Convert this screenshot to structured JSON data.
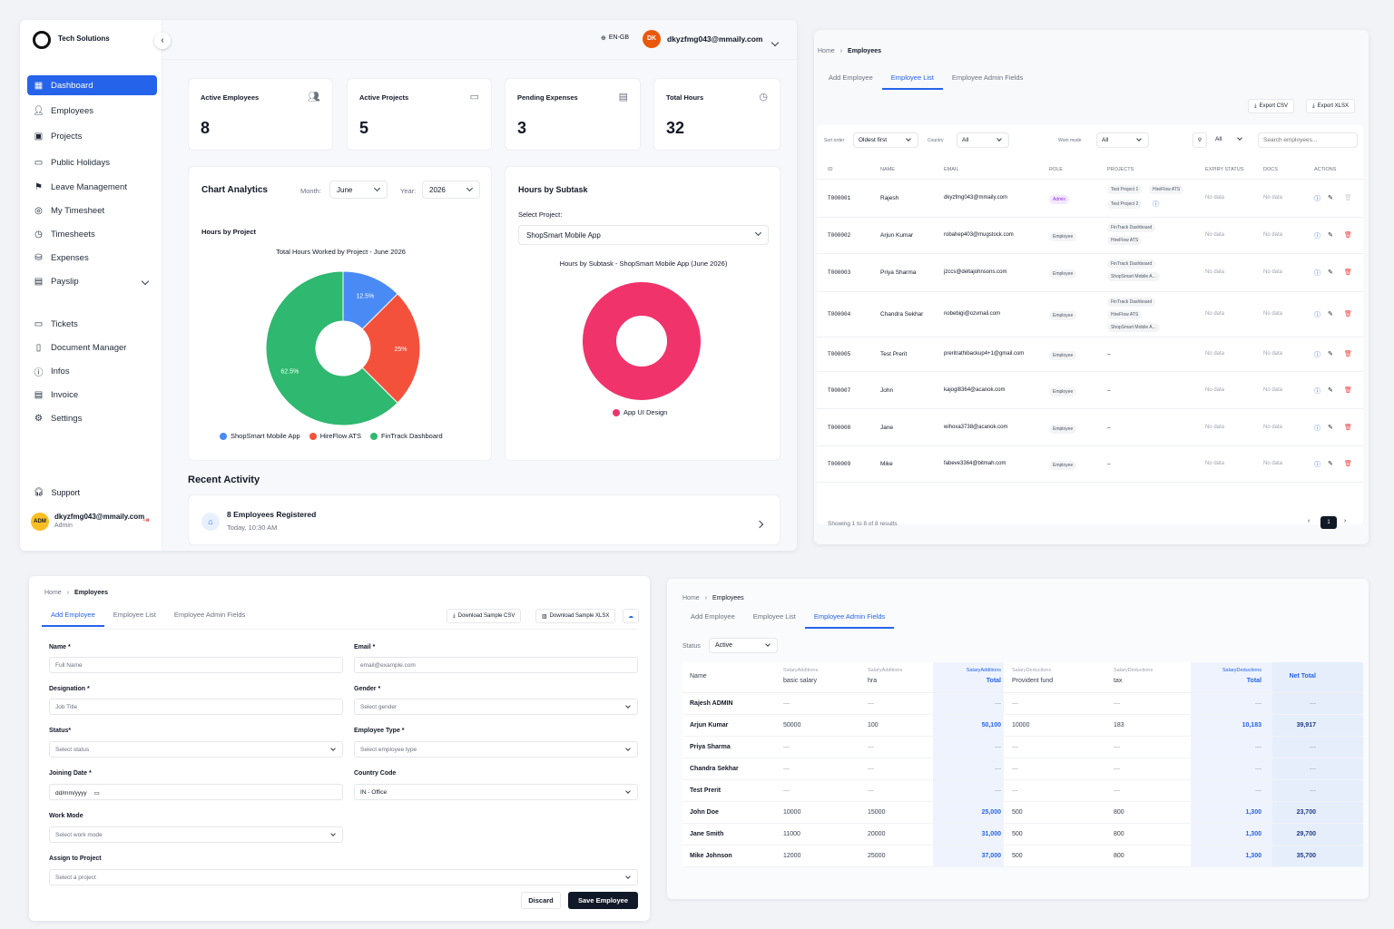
{
  "dashboard": {
    "brand": "Tech Solutions",
    "nav": [
      {
        "label": "Dashboard",
        "icon": "grid-icon"
      },
      {
        "label": "Employees",
        "icon": "users-icon"
      },
      {
        "label": "Projects",
        "icon": "folder-icon"
      },
      {
        "label": "Public Holidays",
        "icon": "calendar-icon"
      },
      {
        "label": "Leave Management",
        "icon": "leave-icon"
      },
      {
        "label": "My Timesheet",
        "icon": "target-icon"
      },
      {
        "label": "Timesheets",
        "icon": "clock-icon"
      },
      {
        "label": "Expenses",
        "icon": "coins-icon"
      },
      {
        "label": "Payslip",
        "icon": "receipt-icon"
      },
      {
        "label": "Tickets",
        "icon": "ticket-icon"
      },
      {
        "label": "Document Manager",
        "icon": "document-icon"
      },
      {
        "label": "Infos",
        "icon": "info-icon"
      },
      {
        "label": "Invoice",
        "icon": "invoice-icon"
      },
      {
        "label": "Settings",
        "icon": "gear-icon"
      }
    ],
    "support": "Support",
    "admin_avatar": "ADM",
    "admin_email": "dkyzfmg043@mmaily.com",
    "admin_role": "Admin",
    "lang": "EN-GB",
    "user_initials": "DK",
    "user_email": "dkyzfmg043@mmaily.com",
    "stats": [
      {
        "label": "Active Employees",
        "value": "8"
      },
      {
        "label": "Active Projects",
        "value": "5"
      },
      {
        "label": "Pending Expenses",
        "value": "3"
      },
      {
        "label": "Total Hours",
        "value": "32"
      }
    ],
    "chart_analytics": {
      "title": "Chart Analytics",
      "month_label": "Month:",
      "month_value": "June",
      "year_label": "Year:",
      "year_value": "2026",
      "subtitle": "Hours by Project"
    },
    "hours_by_subtask": {
      "title": "Hours by Subtask",
      "select_label": "Select Project:",
      "select_value": "ShopSmart Mobile App"
    },
    "recent_activity": {
      "title": "Recent Activity",
      "item_title": "8 Employees Registered",
      "item_time": "Today, 10:30 AM"
    }
  },
  "chart_data": [
    {
      "type": "pie",
      "title": "Total Hours Worked by Project - June 2026",
      "labels": [
        "ShopSmart Mobile App",
        "HireFlow ATS",
        "FinTrack Dashboard"
      ],
      "values": [
        12.5,
        25,
        62.5
      ],
      "colors": [
        "#4a8af4",
        "#f4513c",
        "#2fb86f"
      ]
    },
    {
      "type": "pie",
      "title": "Hours by Subtask - ShopSmart Mobile App (June 2026)",
      "labels": [
        "App UI Design"
      ],
      "values": [
        100
      ],
      "colors": [
        "#f0336b"
      ]
    }
  ],
  "employee_list": {
    "crumb_home": "Home",
    "crumb_current": "Employees",
    "tabs": [
      "Add Employee",
      "Employee List",
      "Employee Admin Fields"
    ],
    "export_csv": "Export CSV",
    "export_xlsx": "Export XLSX",
    "sort_label": "Sort order",
    "sort_value": "Oldest first",
    "country_label": "Country",
    "country_value": "All",
    "work_label": "Work mode",
    "work_value": "All",
    "filter_value": "All",
    "search_placeholder": "Search employees...",
    "headers": [
      "ID",
      "NAME",
      "EMAIL",
      "ROLE",
      "PROJECTS",
      "EXPIRY STATUS",
      "DOCS",
      "ACTIONS"
    ],
    "rows": [
      {
        "id": "T000001",
        "name": "Rajesh",
        "email": "dkyzfmg043@mmaily.com",
        "role": "Admin",
        "projects": [
          "Test Project 1",
          "HireFlow ATS",
          "Test Project 2"
        ],
        "expiry": "No data",
        "docs": "No data"
      },
      {
        "id": "T000002",
        "name": "Arjun Kumar",
        "email": "robahep403@mugstock.com",
        "role": "Employee",
        "projects": [
          "FinTrack Dashboard",
          "HireFlow ATS"
        ],
        "expiry": "No data",
        "docs": "No data"
      },
      {
        "id": "T000003",
        "name": "Priya Sharma",
        "email": "jzccs@deltajohnsons.com",
        "role": "Employee",
        "projects": [
          "FinTrack Dashboard",
          "ShopSmart Mobile A..."
        ],
        "expiry": "No data",
        "docs": "No data"
      },
      {
        "id": "T000004",
        "name": "Chandra Sekhar",
        "email": "nobebigi@ozvmail.com",
        "role": "Employee",
        "projects": [
          "FinTrack Dashboard",
          "HireFlow ATS",
          "ShopSmart Mobile A..."
        ],
        "expiry": "No data",
        "docs": "No data"
      },
      {
        "id": "T000005",
        "name": "Test Prerit",
        "email": "preritrathibackup4+1@gmail.com",
        "role": "Employee",
        "projects": [
          "–"
        ],
        "expiry": "No data",
        "docs": "No data"
      },
      {
        "id": "T000007",
        "name": "John",
        "email": "kajogl8364@acanok.com",
        "role": "Employee",
        "projects": [
          "–"
        ],
        "expiry": "No data",
        "docs": "No data"
      },
      {
        "id": "T000008",
        "name": "Jane",
        "email": "wihoxa3738@acanok.com",
        "role": "Employee",
        "projects": [
          "–"
        ],
        "expiry": "No data",
        "docs": "No data"
      },
      {
        "id": "T000009",
        "name": "Mike",
        "email": "fabeve3364@bitmah.com",
        "role": "Employee",
        "projects": [
          "–"
        ],
        "expiry": "No data",
        "docs": "No data"
      }
    ],
    "footer": "Showing 1 to 8 of 8 results",
    "page": "1"
  },
  "add_employee": {
    "crumb_home": "Home",
    "crumb_current": "Employees",
    "tabs": [
      "Add Employee",
      "Employee List",
      "Employee Admin Fields"
    ],
    "download_csv": "Download Sample CSV",
    "download_xlsx": "Download Sample XLSX",
    "fields": {
      "name_label": "Name *",
      "name_ph": "Full Name",
      "email_label": "Email *",
      "email_ph": "email@example.com",
      "designation_label": "Designation *",
      "designation_ph": "Job Title",
      "gender_label": "Gender *",
      "gender_ph": "Select gender",
      "status_label": "Status*",
      "status_ph": "Select status",
      "type_label": "Employee Type *",
      "type_ph": "Select employee type",
      "joining_label": "Joining Date *",
      "joining_ph": "dd/mm/yyyy",
      "country_label": "Country Code",
      "country_value": "IN - Office",
      "work_label": "Work Mode",
      "work_ph": "Select work mode",
      "project_label": "Assign to Project",
      "project_ph": "Select a project"
    },
    "discard": "Discard",
    "save": "Save Employee"
  },
  "admin_fields": {
    "crumb_home": "Home",
    "crumb_current": "Employees",
    "tabs": [
      "Add Employee",
      "Employee List",
      "Employee Admin Fields"
    ],
    "status_label": "Status",
    "status_value": "Active",
    "headers": [
      {
        "group": "",
        "label": "Name"
      },
      {
        "group": "SalaryAdditions",
        "label": "basic salary"
      },
      {
        "group": "SalaryAdditions",
        "label": "hra"
      },
      {
        "group": "SalaryAdditions",
        "label": "Total"
      },
      {
        "group": "SalaryDeductions",
        "label": "Provident fund"
      },
      {
        "group": "SalaryDeductions",
        "label": "tax"
      },
      {
        "group": "SalaryDeductions",
        "label": "Total"
      },
      {
        "group": "",
        "label": "Net Total"
      }
    ],
    "rows": [
      [
        "Rajesh ADMIN",
        "—",
        "—",
        "—",
        "—",
        "—",
        "—",
        "—"
      ],
      [
        "Arjun Kumar",
        "50000",
        "100",
        "50,100",
        "10000",
        "183",
        "10,183",
        "39,917"
      ],
      [
        "Priya Sharma",
        "—",
        "—",
        "—",
        "—",
        "—",
        "—",
        "—"
      ],
      [
        "Chandra Sekhar",
        "—",
        "—",
        "—",
        "—",
        "—",
        "—",
        "—"
      ],
      [
        "Test Prerit",
        "—",
        "—",
        "—",
        "—",
        "—",
        "—",
        "—"
      ],
      [
        "John Doe",
        "10000",
        "15000",
        "25,000",
        "500",
        "800",
        "1,300",
        "23,700"
      ],
      [
        "Jane Smith",
        "11000",
        "20000",
        "31,000",
        "500",
        "800",
        "1,300",
        "29,700"
      ],
      [
        "Mike Johnson",
        "12000",
        "25000",
        "37,000",
        "500",
        "800",
        "1,300",
        "35,700"
      ]
    ]
  }
}
